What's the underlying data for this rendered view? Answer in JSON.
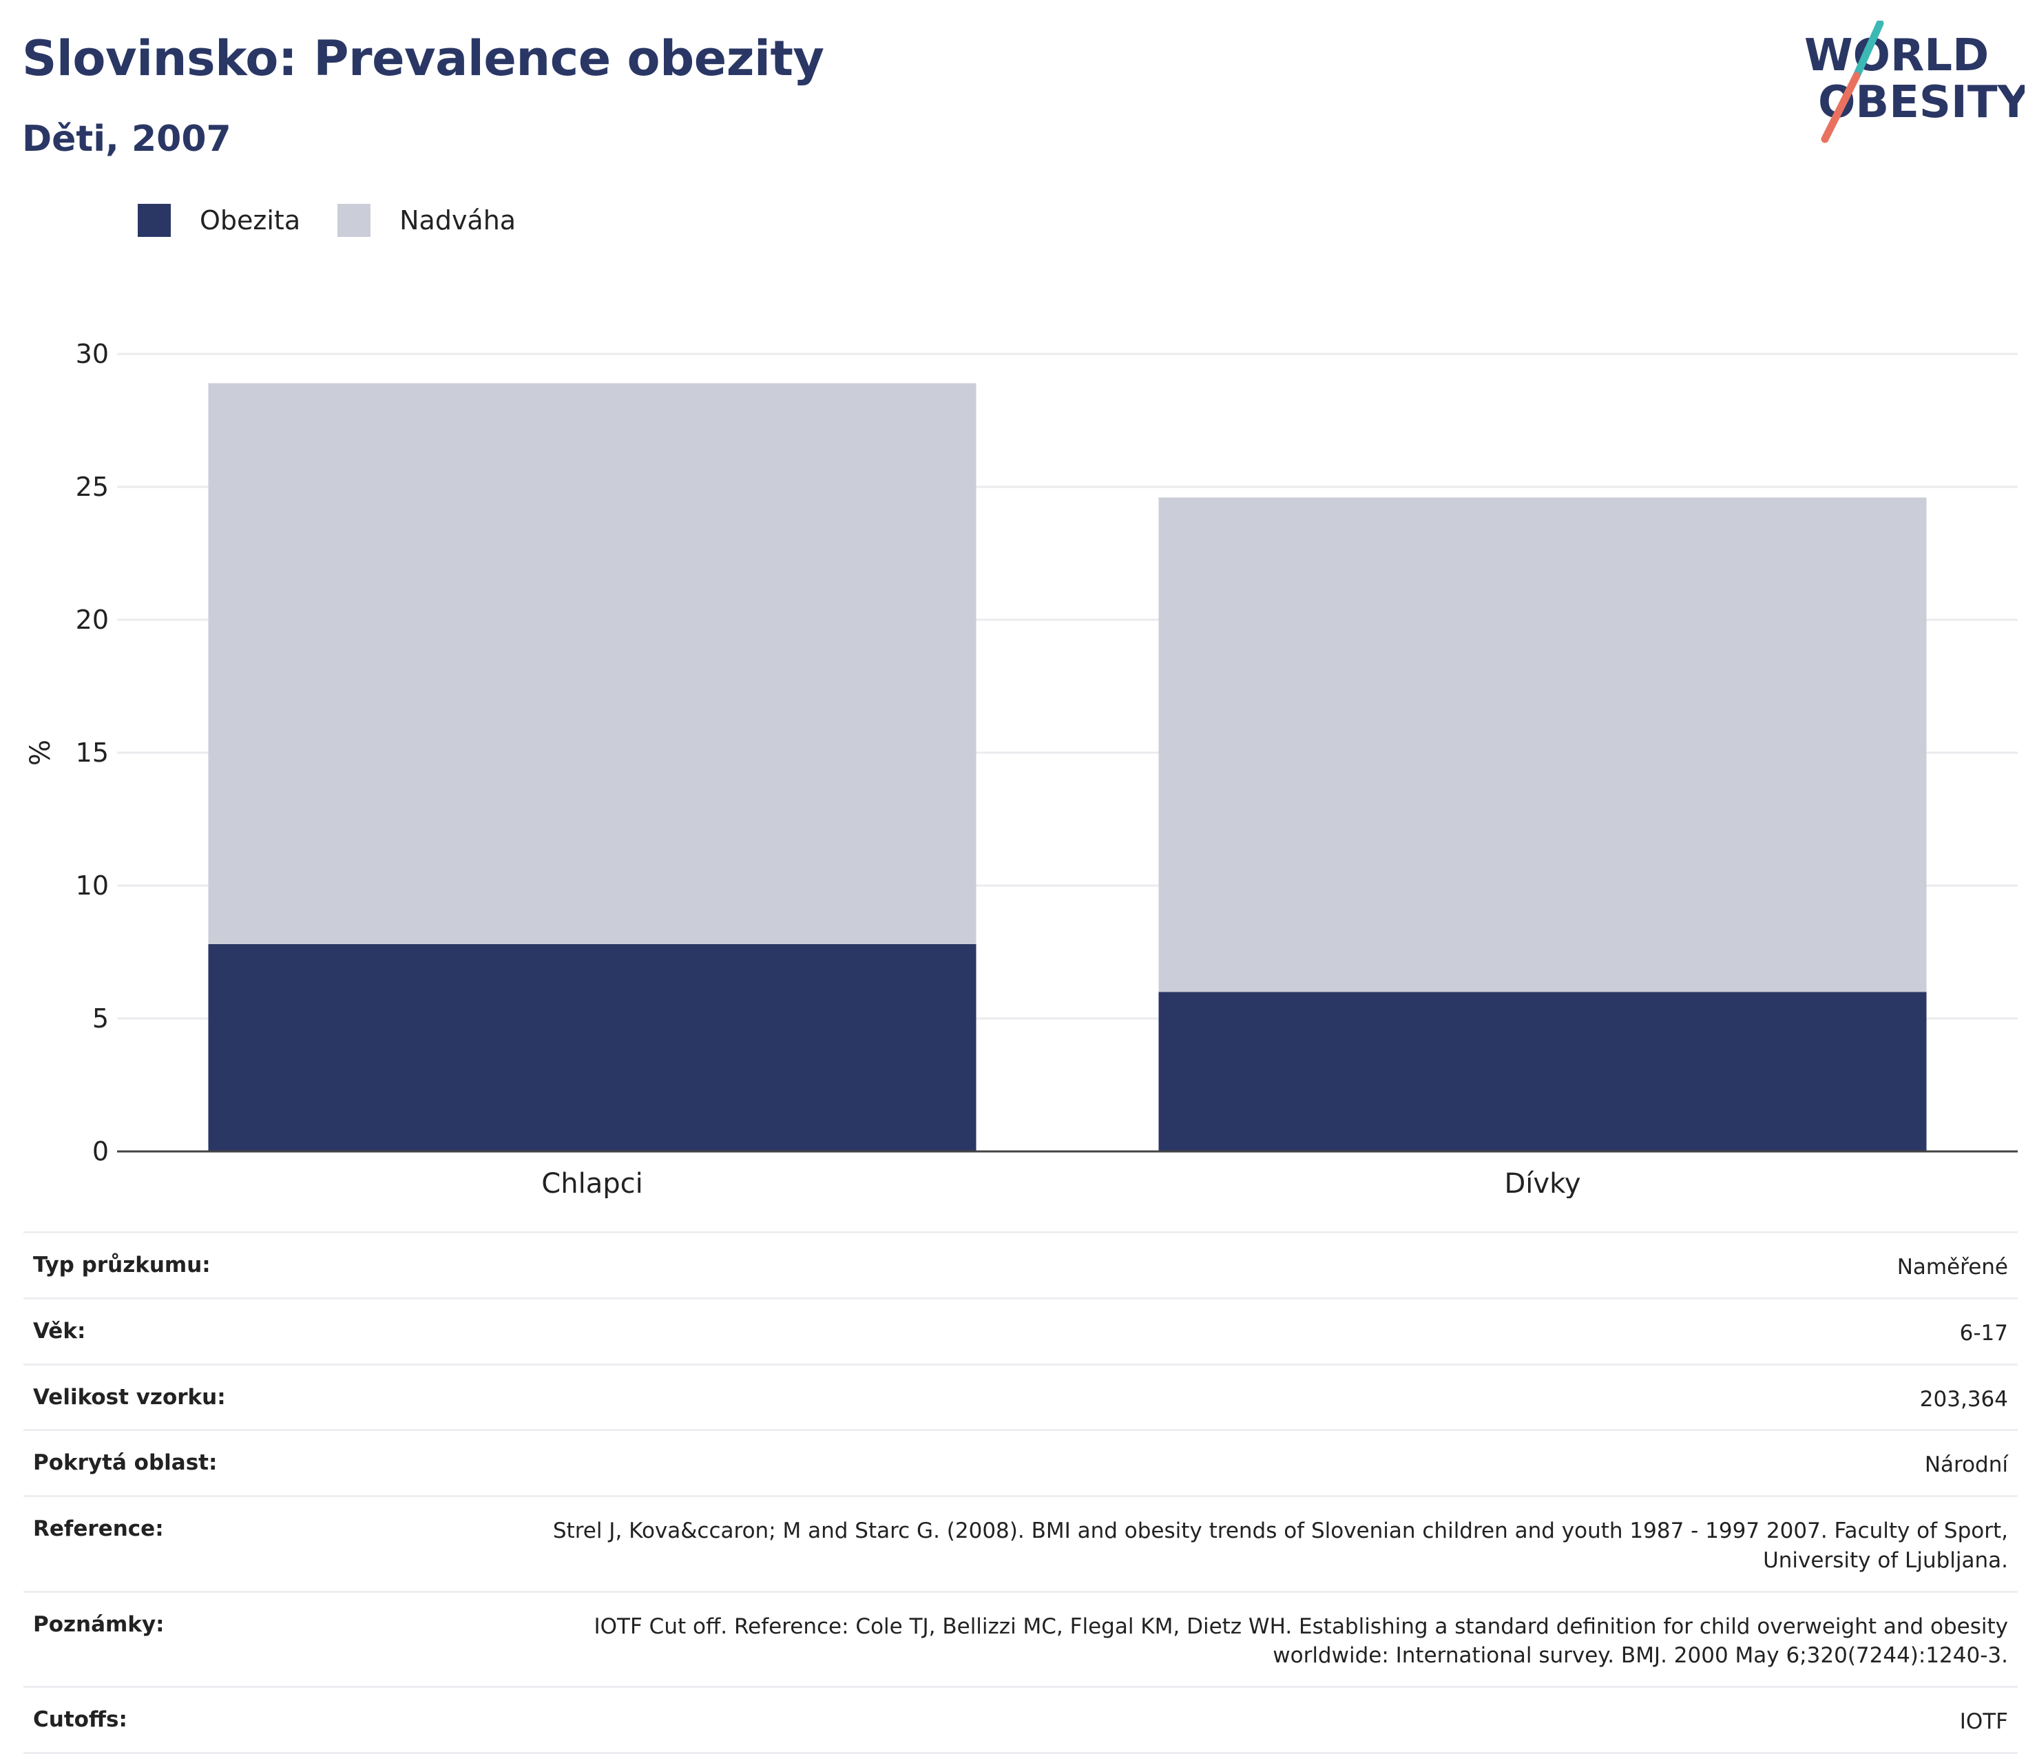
{
  "header": {
    "title": "Slovinsko: Prevalence obezity",
    "subtitle": "Děti, 2007"
  },
  "logo": {
    "line1": "WORLD",
    "line2": "OBESITY",
    "accent_teal": "#3cb8b5",
    "accent_coral": "#e8725f"
  },
  "colors": {
    "obesity": "#2a3765",
    "overweight": "#cbcdd8",
    "grid": "#ebebef",
    "axis": "#444444"
  },
  "chart_data": {
    "type": "bar",
    "stacked": true,
    "categories": [
      "Chlapci",
      "Dívky"
    ],
    "series": [
      {
        "name": "Obezita",
        "values": [
          7.8,
          6.0
        ]
      },
      {
        "name": "Nadváha",
        "values": [
          21.1,
          18.6
        ]
      }
    ],
    "ylabel": "%",
    "ylim": [
      0,
      30
    ],
    "yticks": [
      0,
      5,
      10,
      15,
      20,
      25,
      30
    ],
    "grid": true,
    "legend_position": "top-left"
  },
  "info": [
    {
      "key": "Typ průzkumu:",
      "value": "Naměřené"
    },
    {
      "key": "Věk:",
      "value": "6-17"
    },
    {
      "key": "Velikost vzorku:",
      "value": "203,364"
    },
    {
      "key": "Pokrytá oblast:",
      "value": "Národní"
    },
    {
      "key": "Reference:",
      "value": "Strel J, Kova&ccaron; M and Starc G. (2008). BMI and obesity trends of Slovenian children and youth 1987 - 1997 2007. Faculty of Sport, University of Ljubljana."
    },
    {
      "key": "Poznámky:",
      "value": "IOTF Cut off. Reference: Cole TJ, Bellizzi MC, Flegal KM, Dietz WH. Establishing a standard definition for child overweight and obesity worldwide: International survey. BMJ. 2000 May 6;320(7244):1240-3."
    },
    {
      "key": "Cutoffs:",
      "value": "IOTF"
    }
  ]
}
